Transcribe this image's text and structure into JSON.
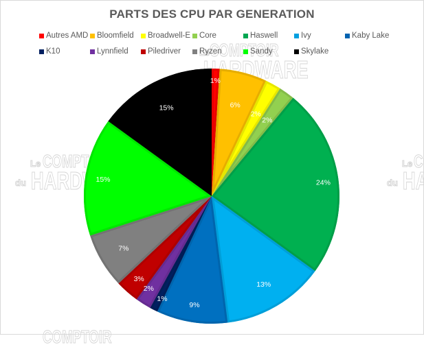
{
  "chart_data": {
    "type": "pie",
    "title": "PARTS DES CPU PAR GENERATION",
    "start_angle_deg": 0,
    "direction": "clockwise",
    "legend_position": "top",
    "categories": [
      "Autres AMD",
      "Bloomfield",
      "Broadwell-E",
      "Core",
      "Haswell",
      "Ivy",
      "Kaby Lake",
      "K10",
      "Lynnfield",
      "Piledriver",
      "Ryzen",
      "Sandy",
      "Skylake"
    ],
    "values": [
      1,
      6,
      2,
      2,
      24,
      13,
      9,
      1,
      2,
      3,
      7,
      15,
      15
    ],
    "value_labels": [
      "1%",
      "6%",
      "2%",
      "2%",
      "24%",
      "13%",
      "9%",
      "1%",
      "2%",
      "3%",
      "7%",
      "15%",
      "15%"
    ],
    "colors": [
      "#ff0000",
      "#ffc000",
      "#ffff00",
      "#92d050",
      "#00b050",
      "#00b0f0",
      "#0070c0",
      "#002060",
      "#7030a0",
      "#c00000",
      "#808080",
      "#00ff00",
      "#000000"
    ],
    "unit": "%"
  },
  "legend": {
    "items": [
      {
        "label": "Autres AMD",
        "color": "#ff0000"
      },
      {
        "label": "Bloomfield",
        "color": "#ffc000"
      },
      {
        "label": "Broadwell-E",
        "color": "#ffff00"
      },
      {
        "label": "Core",
        "color": "#92d050"
      },
      {
        "label": "Haswell",
        "color": "#00b050"
      },
      {
        "label": "Ivy",
        "color": "#00b0f0"
      },
      {
        "label": "Kaby Lake",
        "color": "#0070c0"
      },
      {
        "label": "K10",
        "color": "#002060"
      },
      {
        "label": "Lynnfield",
        "color": "#7030a0"
      },
      {
        "label": "Piledriver",
        "color": "#c00000"
      },
      {
        "label": "Ryzen",
        "color": "#808080"
      },
      {
        "label": "Sandy",
        "color": "#00ff00"
      },
      {
        "label": "Skylake",
        "color": "#000000"
      }
    ]
  },
  "watermark": {
    "line1_small": "Le",
    "line1_big": "COMPTOIR",
    "line2_small": "du",
    "line2_big": "HARDWARE"
  }
}
